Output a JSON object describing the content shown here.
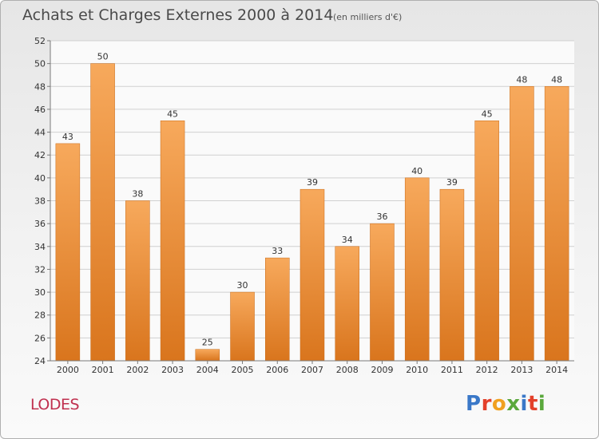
{
  "title": "Achats et Charges Externes 2000 à 2014",
  "subtitle": "(en milliers d'€)",
  "commune": "LODES",
  "logo": {
    "text": "Proxiti",
    "letters": [
      {
        "char": "P",
        "color": "#3a78c8"
      },
      {
        "char": "r",
        "color": "#e3402a"
      },
      {
        "char": "o",
        "color": "#f0a020"
      },
      {
        "char": "x",
        "color": "#5aa83c"
      },
      {
        "char": "i",
        "color": "#3a78c8"
      },
      {
        "char": "t",
        "color": "#e3402a"
      },
      {
        "char": "i",
        "color": "#5aa83c"
      }
    ]
  },
  "colors": {
    "bar_top": "#f7a95c",
    "bar_bottom": "#d9751d",
    "grid": "#d0d0d0",
    "axis": "#7a7a7a",
    "text": "#333333"
  },
  "chart_data": {
    "type": "bar",
    "title": "Achats et Charges Externes 2000 à 2014",
    "subtitle": "(en milliers d'€)",
    "categories": [
      "2000",
      "2001",
      "2002",
      "2003",
      "2004",
      "2005",
      "2006",
      "2007",
      "2008",
      "2009",
      "2010",
      "2011",
      "2012",
      "2013",
      "2014"
    ],
    "values": [
      43,
      50,
      38,
      45,
      25,
      30,
      33,
      39,
      34,
      36,
      40,
      39,
      45,
      48,
      48
    ],
    "ylim": [
      24,
      52
    ],
    "yticks": [
      24,
      26,
      28,
      30,
      32,
      34,
      36,
      38,
      40,
      42,
      44,
      46,
      48,
      50,
      52
    ],
    "grid": true,
    "xlabel": "",
    "ylabel": ""
  }
}
